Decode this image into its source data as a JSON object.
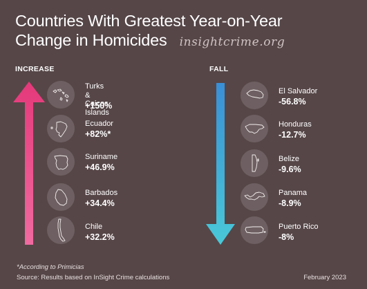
{
  "title": {
    "line1": "Countries With Greatest Year-on-Year",
    "line2": "Change in Homicides",
    "brand": "insightcrime.org"
  },
  "increase": {
    "heading": "INCREASE",
    "arrow_color": "#e83e7b",
    "items": [
      {
        "name": "Turks & Caicos\nIslands",
        "value": "+150%",
        "icon": "turks-caicos-map-icon"
      },
      {
        "name": "Ecuador",
        "value": "+82%*",
        "icon": "ecuador-map-icon"
      },
      {
        "name": "Suriname",
        "value": "+46.9%",
        "icon": "suriname-map-icon"
      },
      {
        "name": "Barbados",
        "value": "+34.4%",
        "icon": "barbados-map-icon"
      },
      {
        "name": "Chile",
        "value": "+32.2%",
        "icon": "chile-map-icon"
      }
    ]
  },
  "fall": {
    "heading": "FALL",
    "arrow_color": "#3fb6d9",
    "items": [
      {
        "name": "El Salvador",
        "value": "-56.8%",
        "icon": "el-salvador-map-icon"
      },
      {
        "name": "Honduras",
        "value": "-12.7%",
        "icon": "honduras-map-icon"
      },
      {
        "name": "Belize",
        "value": "-9.6%",
        "icon": "belize-map-icon"
      },
      {
        "name": "Panama",
        "value": "-8.9%",
        "icon": "panama-map-icon"
      },
      {
        "name": "Puerto Rico",
        "value": "-8%",
        "icon": "puerto-rico-map-icon"
      }
    ]
  },
  "footer": {
    "footnote": "*According to Primicias",
    "source": "Source: Results based on InSight Crime calculations",
    "date": "February 2023"
  }
}
